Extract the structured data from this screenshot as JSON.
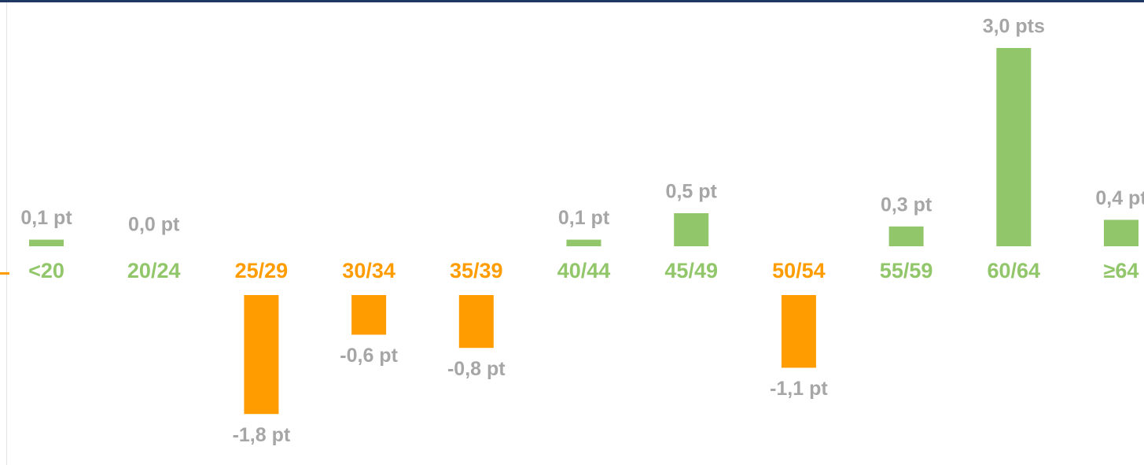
{
  "chart_data": {
    "type": "bar",
    "categories": [
      "<20",
      "20/24",
      "25/29",
      "30/34",
      "35/39",
      "40/44",
      "45/49",
      "50/54",
      "55/59",
      "60/64",
      "≥64"
    ],
    "values": [
      0.1,
      0.0,
      -1.8,
      -0.6,
      -0.8,
      0.1,
      0.5,
      -1.1,
      0.3,
      3.0,
      0.4
    ],
    "value_labels": [
      "0,1 pt",
      "0,0 pt",
      "-1,8 pt",
      "-0,6 pt",
      "-0,8 pt",
      "0,1 pt",
      "0,5 pt",
      "-1,1 pt",
      "0,3 pt",
      "3,0 pts",
      "0,4 pt"
    ],
    "colors": [
      "#92c66a",
      "#92c66a",
      "#ff9d00",
      "#ff9d00",
      "#ff9d00",
      "#92c66a",
      "#92c66a",
      "#ff9d00",
      "#92c66a",
      "#92c66a",
      "#92c66a"
    ]
  }
}
